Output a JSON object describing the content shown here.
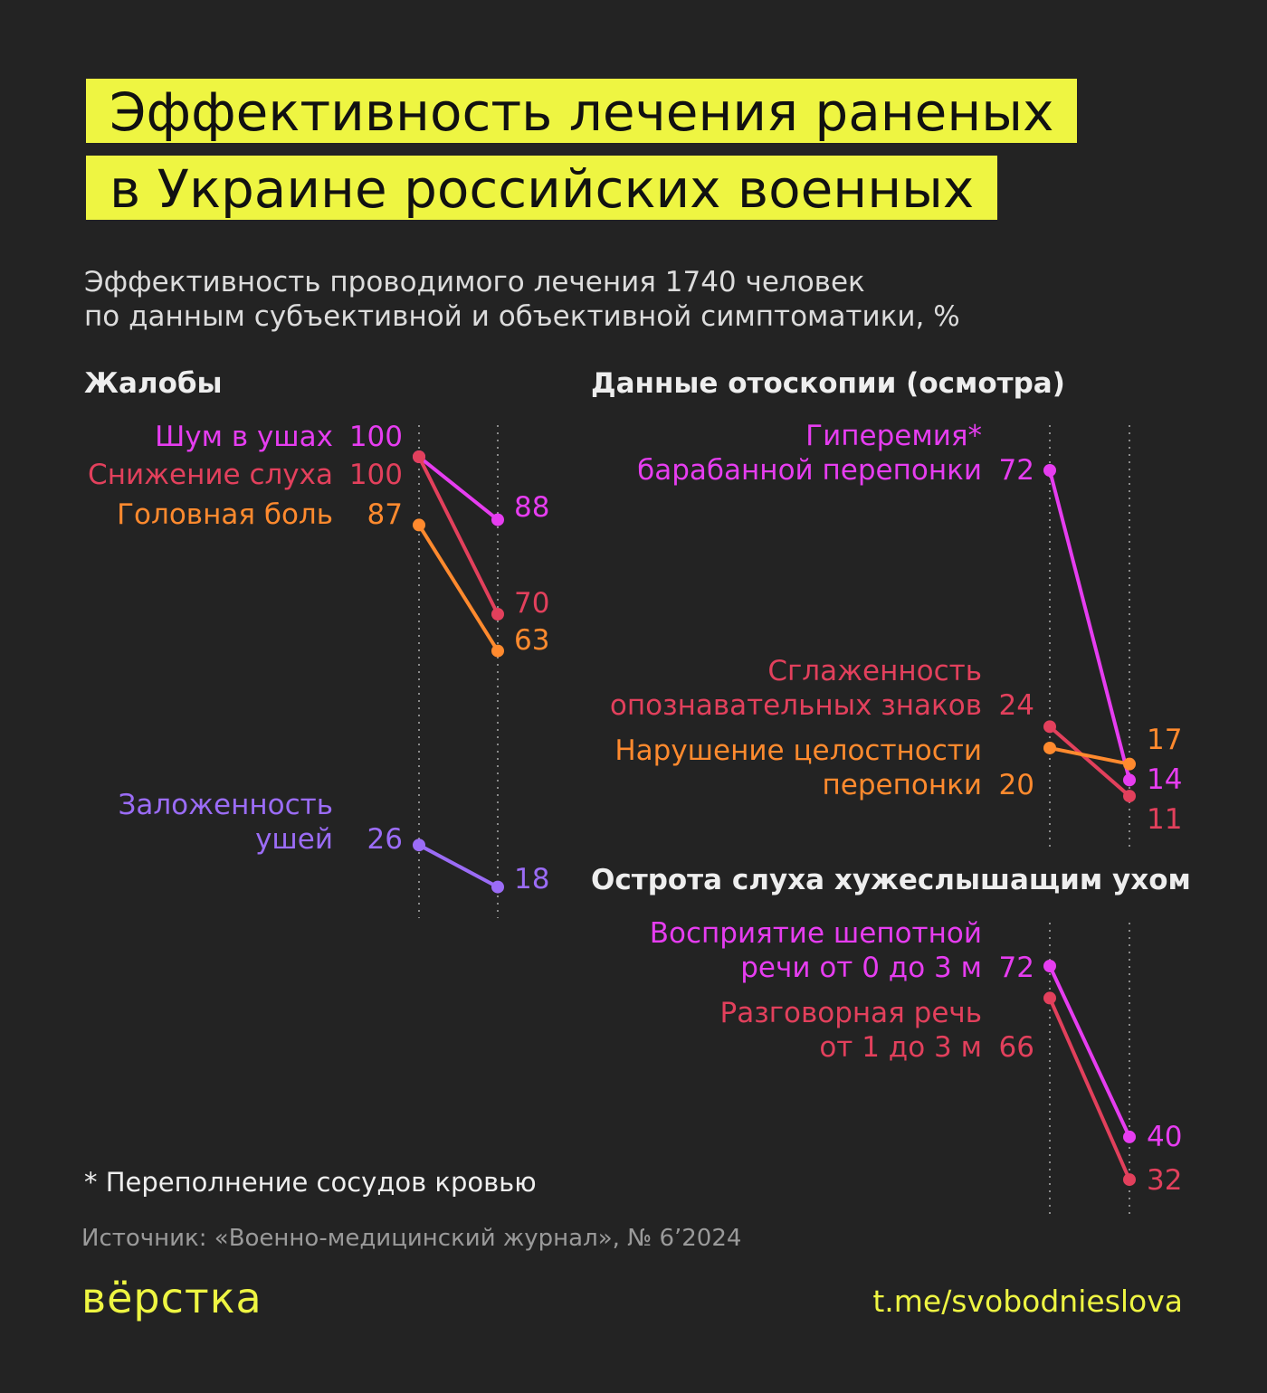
{
  "header": {
    "title": "Эффективность лечения раненых\nв Украине российских военных",
    "subtitle": "Эффективность проводимого лечения 1740 человек\nпо данным субъективной и объективной симптоматики, %"
  },
  "chart_data": [
    {
      "type": "slope",
      "title": "Жалобы",
      "ylim": [
        0,
        100
      ],
      "series": [
        {
          "name": "Шум в ушах",
          "color": "#e63df0",
          "values": [
            100,
            88
          ]
        },
        {
          "name": "Снижение слуха",
          "color": "#e2405c",
          "values": [
            100,
            70
          ]
        },
        {
          "name": "Головная боль",
          "color": "#ff8a2e",
          "values": [
            87,
            63
          ]
        },
        {
          "name": "Заложенность\nушей",
          "color": "#9b6cf6",
          "values": [
            26,
            18
          ]
        }
      ]
    },
    {
      "type": "slope",
      "title": "Данные отоскопии (осмотра)",
      "ylim": [
        0,
        72
      ],
      "series": [
        {
          "name": "Гиперемия*\nбарабанной перепонки",
          "color": "#e63df0",
          "values": [
            72,
            14
          ]
        },
        {
          "name": "Сглаженность\nопознавательных знаков",
          "color": "#e2405c",
          "values": [
            24,
            11
          ]
        },
        {
          "name": "Нарушение целостности\nперепонки",
          "color": "#ff8a2e",
          "values": [
            20,
            17
          ]
        }
      ]
    },
    {
      "type": "slope",
      "title": "Острота слуха хужеслышащим ухом",
      "ylim": [
        0,
        72
      ],
      "series": [
        {
          "name": "Восприятие шепотной\nречи от 0 до 3 м",
          "color": "#e63df0",
          "values": [
            72,
            40
          ]
        },
        {
          "name": "Разговорная речь\nот 1 до 3 м",
          "color": "#e2405c",
          "values": [
            66,
            32
          ]
        }
      ]
    }
  ],
  "footer": {
    "footnote": "* Переполнение сосудов кровью",
    "source": "Источник: «Военно-медицинский журнал», № 6’2024",
    "logo": "вёрстка",
    "link": "t.me/svobodnieslova"
  }
}
